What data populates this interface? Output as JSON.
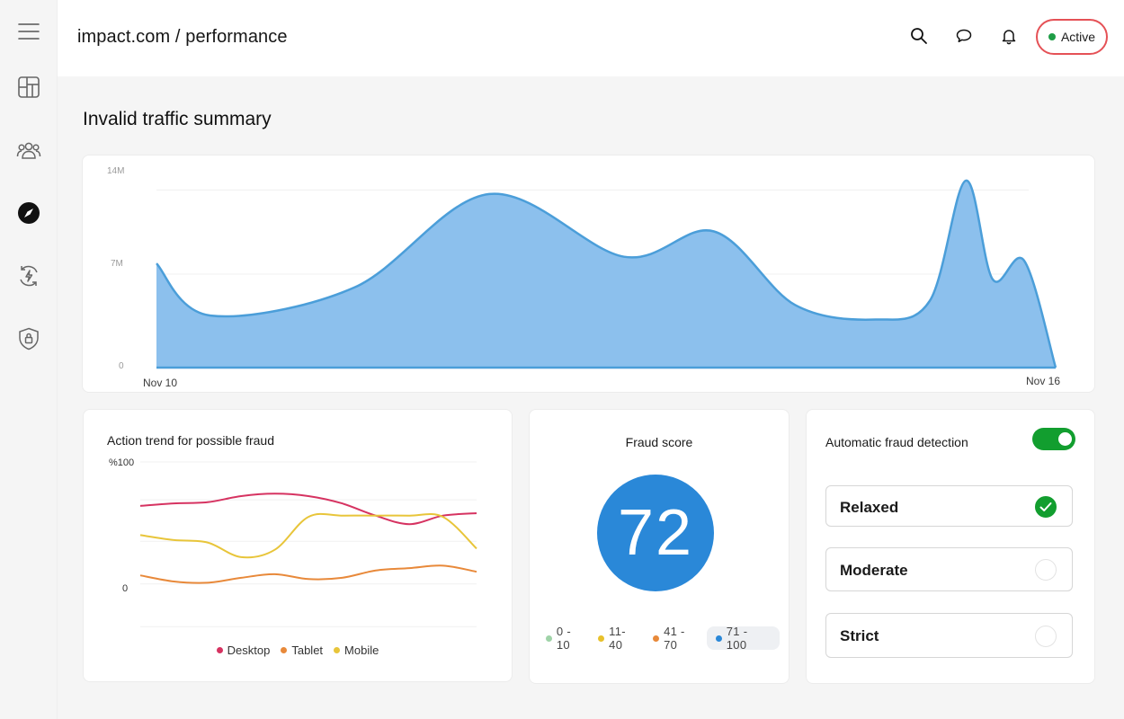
{
  "header": {
    "breadcrumb": "impact.com / performance",
    "status": "Active",
    "status_color": "#1e9d46",
    "status_border_color": "#e55156"
  },
  "sidebar": {
    "items": [
      {
        "name": "menu",
        "icon": "hamburger-icon"
      },
      {
        "name": "dashboard",
        "icon": "layout-icon"
      },
      {
        "name": "users",
        "icon": "users-icon"
      },
      {
        "name": "explore",
        "icon": "compass-icon",
        "selected": true
      },
      {
        "name": "performance",
        "icon": "bolt-cycle-icon"
      },
      {
        "name": "security",
        "icon": "shield-lock-icon"
      }
    ]
  },
  "page": {
    "title": "Invalid traffic summary"
  },
  "chart_data": [
    {
      "type": "area",
      "title": "",
      "ylabel": "",
      "y_ticks": [
        "14M",
        "7M",
        "0"
      ],
      "ylim": [
        0,
        14000000
      ],
      "x_start_label": "Nov 10",
      "x_end_label": "Nov 16",
      "color": "#86bdec",
      "line_color": "#4b9ed9",
      "grid": true,
      "x": [
        0,
        0.06,
        0.22,
        0.37,
        0.52,
        0.62,
        0.71,
        0.8,
        0.86,
        0.9,
        0.93,
        0.965,
        1.0
      ],
      "values": [
        7800000,
        3900000,
        6000000,
        13000000,
        8300000,
        10200000,
        4700000,
        3600000,
        5000000,
        14000000,
        6600000,
        8000000,
        0
      ]
    },
    {
      "type": "line",
      "title": "Action trend for possible fraud",
      "y_ticks": [
        "%100",
        "0"
      ],
      "ylim": [
        -40,
        100
      ],
      "grid": true,
      "x": [
        0,
        0.1,
        0.2,
        0.3,
        0.4,
        0.5,
        0.6,
        0.7,
        0.8,
        0.9,
        1.0
      ],
      "series": [
        {
          "name": "Desktop",
          "color": "#d63361",
          "values": [
            64,
            66,
            67,
            72,
            74,
            72,
            66,
            56,
            49,
            56,
            58
          ]
        },
        {
          "name": "Tablet",
          "color": "#e8893a",
          "values": [
            7,
            2,
            1,
            5,
            8,
            4,
            5,
            11,
            13,
            15,
            10
          ]
        },
        {
          "name": "Mobile",
          "color": "#e8c53a",
          "values": [
            40,
            36,
            34,
            22,
            28,
            55,
            56,
            56,
            56,
            55,
            29
          ]
        }
      ]
    }
  ],
  "fraud_score": {
    "title": "Fraud score",
    "value": "72",
    "ranges": [
      {
        "label": "0 - 10",
        "color": "#9fd3a8",
        "active": false
      },
      {
        "label": "11- 40",
        "color": "#e8c12b",
        "active": false
      },
      {
        "label": "41 - 70",
        "color": "#e8893a",
        "active": false
      },
      {
        "label": "71 - 100",
        "color": "#2a88d8",
        "active": true
      }
    ]
  },
  "detection": {
    "title": "Automatic fraud detection",
    "enabled": true,
    "toggle_color": "#129e2f",
    "options": [
      {
        "label": "Relaxed",
        "selected": true
      },
      {
        "label": "Moderate",
        "selected": false
      },
      {
        "label": "Strict",
        "selected": false
      }
    ]
  }
}
